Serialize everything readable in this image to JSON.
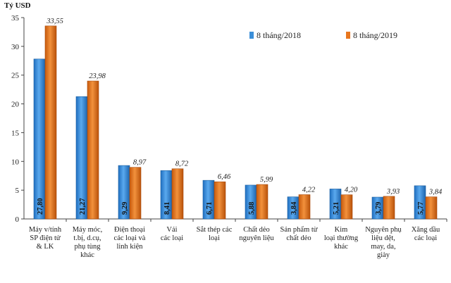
{
  "chart_data": {
    "type": "bar",
    "ylabel": "Tỷ USD",
    "ylim": [
      0,
      35
    ],
    "yticks": [
      0,
      5,
      10,
      15,
      20,
      25,
      30,
      35
    ],
    "legend_position": "top-right",
    "grid": false,
    "categories": [
      [
        "Máy v/tính",
        "SP điện tử",
        "& LK"
      ],
      [
        "Máy móc,",
        "t.bị, d.cụ,",
        "phụ tùng",
        "khác"
      ],
      [
        "Điện thoại",
        "các loại và",
        "linh kiện"
      ],
      [
        "Vải",
        "các loại"
      ],
      [
        "Sắt thép các",
        "loại"
      ],
      [
        "Chất dẻo",
        "nguyên liệu"
      ],
      [
        "Sản phẩm từ",
        "chất dẻo"
      ],
      [
        "Kim",
        "loại thường",
        "khác"
      ],
      [
        "Nguyên phụ",
        "liệu dệt,",
        "may, da,",
        "giày"
      ],
      [
        "Xăng dầu",
        "các loại"
      ]
    ],
    "series": [
      {
        "name": "8 tháng/2018",
        "color": "#3b8fd9",
        "values": [
          27.8,
          21.27,
          9.29,
          8.41,
          6.71,
          5.88,
          3.84,
          5.21,
          3.79,
          5.77
        ],
        "labels": [
          "27,80",
          "21,27",
          "9,29",
          "8,41",
          "6,71",
          "5,88",
          "3,84",
          "5,21",
          "3,79",
          "5,77"
        ]
      },
      {
        "name": "8 tháng/2019",
        "color": "#e8761e",
        "values": [
          33.55,
          23.98,
          8.97,
          8.72,
          6.46,
          5.99,
          4.22,
          4.2,
          3.93,
          3.84
        ],
        "labels": [
          "33,55",
          "23,98",
          "8,97",
          "8,72",
          "6,46",
          "5,99",
          "4,22",
          "4,20",
          "3,93",
          "3,84"
        ]
      }
    ]
  }
}
